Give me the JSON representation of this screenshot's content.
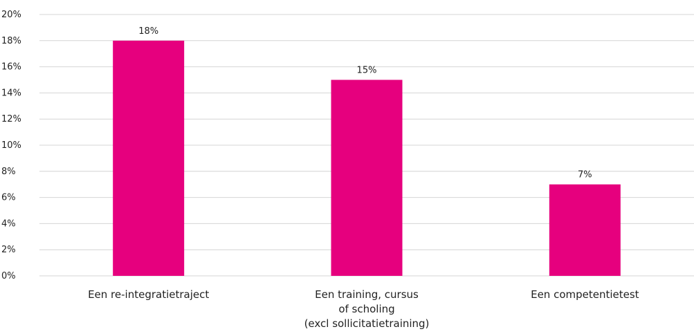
{
  "chart_data": {
    "type": "bar",
    "categories": [
      [
        "Een re-integratietraject"
      ],
      [
        "Een training, cursus",
        "of scholing",
        "(excl sollicitatietraining)"
      ],
      [
        "Een competentietest"
      ]
    ],
    "values": [
      18,
      15,
      7
    ],
    "data_labels": [
      "18%",
      "15%",
      "7%"
    ],
    "ylim": [
      0,
      20
    ],
    "y_ticks": [
      "0%",
      "2%",
      "4%",
      "6%",
      "8%",
      "10%",
      "12%",
      "14%",
      "16%",
      "18%",
      "20%"
    ],
    "grid": true,
    "legend": "none",
    "bar_color": "#E6007E",
    "grid_color": "#D4D4D4"
  }
}
